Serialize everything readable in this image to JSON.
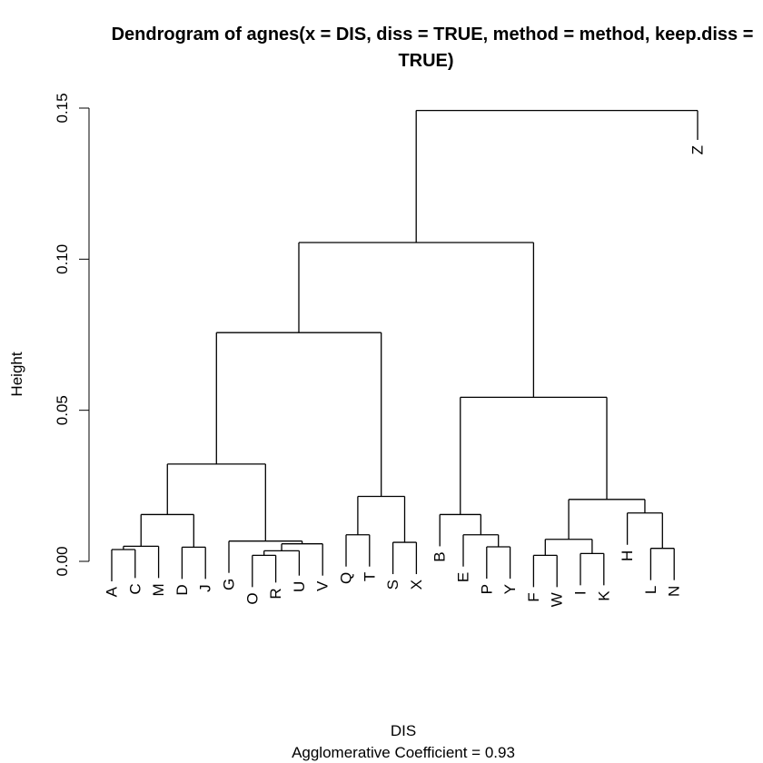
{
  "title": {
    "line1": "Dendrogram of  agnes(x = DIS, diss = TRUE, method = method, keep.diss =",
    "line2": "TRUE)"
  },
  "ylabel": "Height",
  "xlabel": "DIS",
  "subtitle": "Agglomerative Coefficient =  0.93",
  "y_ticks": [
    "0.00",
    "0.05",
    "0.10",
    "0.15"
  ],
  "chart_data": {
    "type": "dendrogram",
    "ylim": [
      0,
      0.15
    ],
    "leaves": [
      "A",
      "C",
      "M",
      "D",
      "J",
      "G",
      "O",
      "R",
      "U",
      "V",
      "Q",
      "T",
      "S",
      "X",
      "B",
      "E",
      "P",
      "Y",
      "F",
      "W",
      "I",
      "K",
      "H",
      "L",
      "N",
      "Z"
    ],
    "leaf_heights": [
      0.0039,
      0.005,
      0.005,
      0.0047,
      0.0047,
      0.0067,
      0.002,
      0.0035,
      0.0058,
      0.0058,
      0.0088,
      0.0088,
      0.0063,
      0.0063,
      0.0155,
      0.0088,
      0.0048,
      0.0048,
      0.002,
      0.002,
      0.0026,
      0.0026,
      0.016,
      0.0043,
      0.0043,
      0.15
    ],
    "merges": [
      {
        "a": "A",
        "b": "C",
        "height": 0.0039
      },
      {
        "a": 0,
        "b": "M",
        "height": 0.005
      },
      {
        "a": "D",
        "b": "J",
        "height": 0.0047
      },
      {
        "a": 1,
        "b": 2,
        "height": 0.0155
      },
      {
        "a": "O",
        "b": "R",
        "height": 0.002
      },
      {
        "a": 4,
        "b": "U",
        "height": 0.0035
      },
      {
        "a": 5,
        "b": "V",
        "height": 0.0058
      },
      {
        "a": "G",
        "b": 6,
        "height": 0.0067
      },
      {
        "a": 3,
        "b": 7,
        "height": 0.0322
      },
      {
        "a": "Q",
        "b": "T",
        "height": 0.0088
      },
      {
        "a": "S",
        "b": "X",
        "height": 0.0063
      },
      {
        "a": 9,
        "b": 10,
        "height": 0.0215
      },
      {
        "a": 8,
        "b": 11,
        "height": 0.0757
      },
      {
        "a": "P",
        "b": "Y",
        "height": 0.0048
      },
      {
        "a": "E",
        "b": 13,
        "height": 0.0088
      },
      {
        "a": "B",
        "b": 14,
        "height": 0.0155
      },
      {
        "a": "F",
        "b": "W",
        "height": 0.002
      },
      {
        "a": "I",
        "b": "K",
        "height": 0.0026
      },
      {
        "a": 16,
        "b": 17,
        "height": 0.0073
      },
      {
        "a": "L",
        "b": "N",
        "height": 0.0043
      },
      {
        "a": "H",
        "b": 19,
        "height": 0.016
      },
      {
        "a": 18,
        "b": 20,
        "height": 0.0205
      },
      {
        "a": 15,
        "b": 21,
        "height": 0.0543
      },
      {
        "a": 12,
        "b": 22,
        "height": 0.1055
      },
      {
        "a": 23,
        "b": "Z",
        "height": 0.1492
      }
    ]
  }
}
